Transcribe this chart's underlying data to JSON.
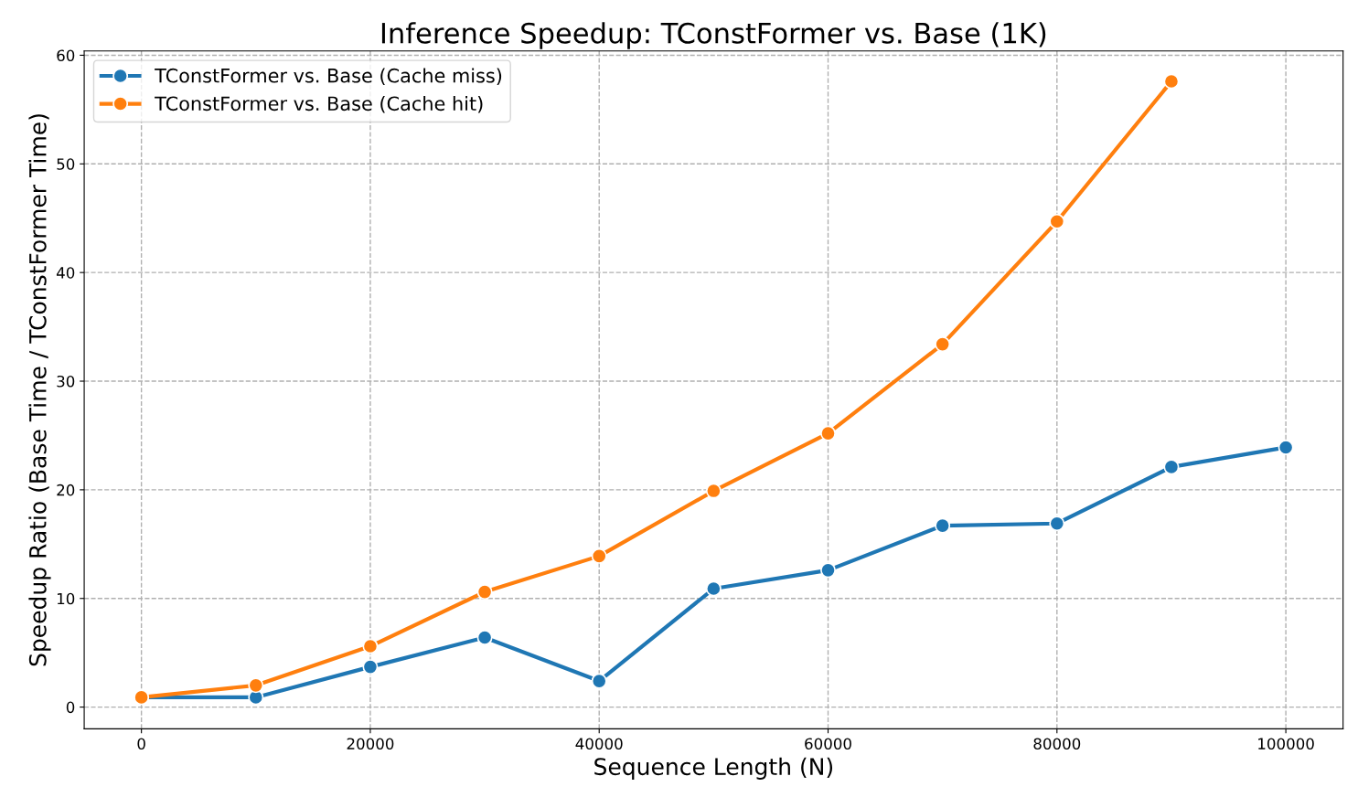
{
  "chart_data": {
    "type": "line",
    "title": "Inference Speedup: TConstFormer vs. Base (1K)",
    "xlabel": "Sequence Length (N)",
    "ylabel": "Speedup Ratio (Base Time / TConstFormer Time)",
    "x": [
      0,
      10000,
      20000,
      30000,
      40000,
      50000,
      60000,
      70000,
      80000,
      90000,
      100000
    ],
    "series": [
      {
        "name": "TConstFormer vs. Base (Cache miss)",
        "color": "#1f77b4",
        "values": [
          0.9,
          0.9,
          3.7,
          6.4,
          2.4,
          10.9,
          12.6,
          16.7,
          16.9,
          22.1,
          23.9
        ]
      },
      {
        "name": "TConstFormer vs. Base (Cache hit)",
        "color": "#ff7f0e",
        "values": [
          0.9,
          2.0,
          5.6,
          10.6,
          13.9,
          19.9,
          25.2,
          33.4,
          44.7,
          57.6,
          null
        ]
      }
    ],
    "xlim": [
      -5000,
      105000
    ],
    "xticks": [
      0,
      20000,
      40000,
      60000,
      80000,
      100000
    ],
    "ylim": [
      -2,
      60.4
    ],
    "yticks": [
      0,
      10,
      20,
      30,
      40,
      50,
      60
    ],
    "grid": true,
    "legend": "top left",
    "marker": "circle",
    "line_style": "solid"
  }
}
